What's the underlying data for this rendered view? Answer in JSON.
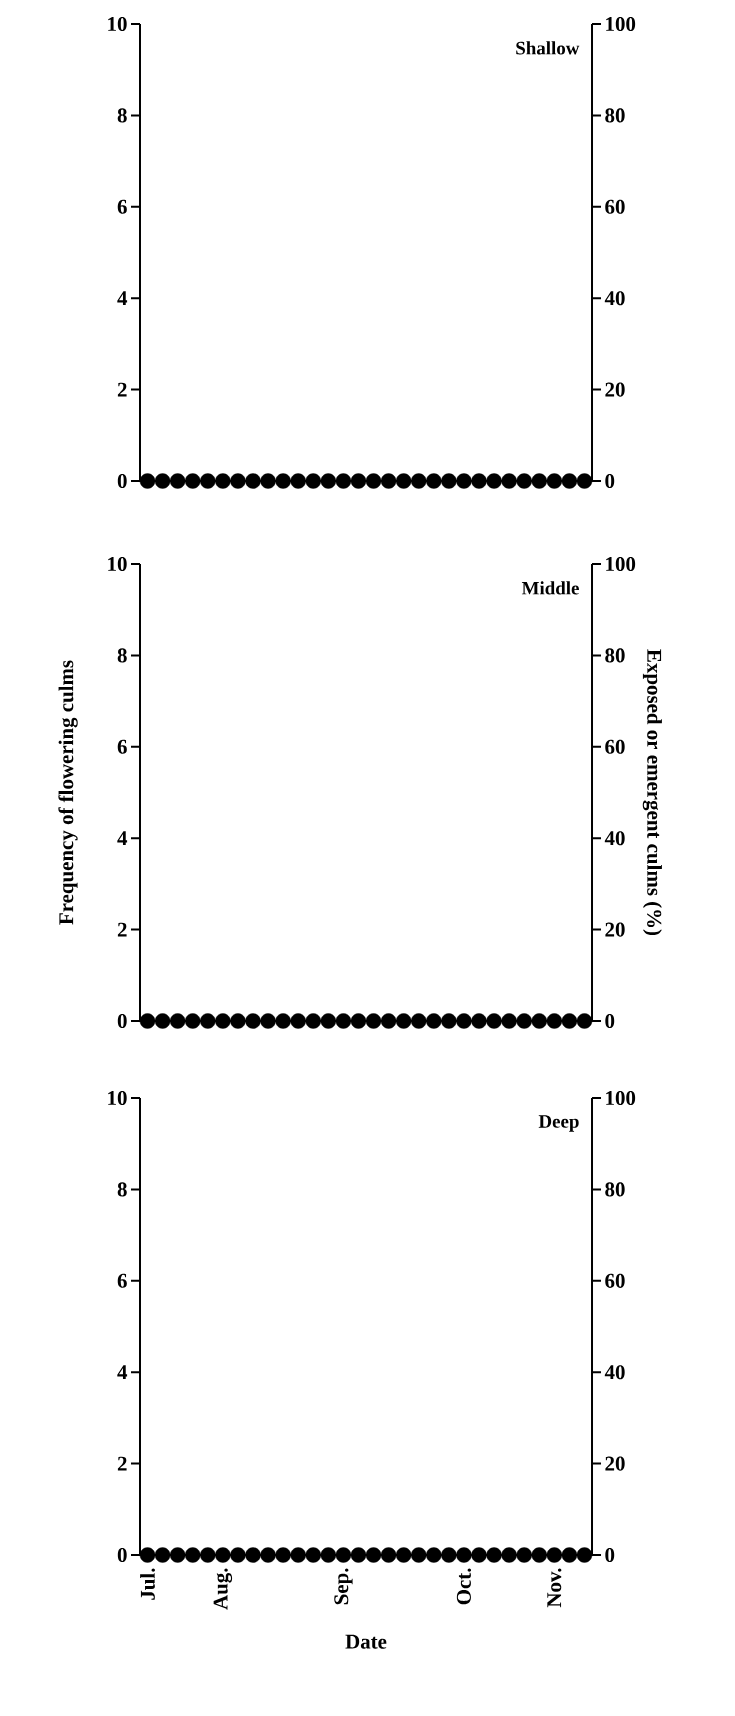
{
  "chart_data": [
    {
      "type": "scatter",
      "title": "Shallow",
      "marker": "circle",
      "tick_labels": "y",
      "categories": [
        null,
        null,
        null,
        null,
        null,
        null,
        null,
        null,
        null,
        null,
        null,
        null,
        null,
        null,
        null,
        null,
        null,
        null,
        null,
        null,
        null,
        null,
        null,
        null,
        null,
        null,
        null,
        null,
        null,
        null
      ],
      "series": [
        {
          "color": "#000000",
          "values": [
            0,
            0,
            0,
            0,
            0,
            0,
            0,
            0,
            0,
            0,
            0,
            0,
            0,
            0,
            0,
            0,
            0,
            0,
            0,
            0,
            0,
            0,
            0,
            0,
            0,
            0,
            0,
            0,
            0,
            0
          ]
        }
      ],
      "ylim": [
        0,
        10
      ],
      "yticks": [
        0,
        2,
        4,
        6,
        8,
        10
      ],
      "y2lim": [
        0,
        100
      ],
      "y2ticks": [
        0,
        20,
        40,
        60,
        80,
        100
      ]
    },
    {
      "type": "scatter",
      "title": "Middle",
      "marker": "circle",
      "tick_labels": "y",
      "ylabel": "Frequency of flowering culms",
      "y2label": "Exposed or emergent culms (%)",
      "categories": [
        null,
        null,
        null,
        null,
        null,
        null,
        null,
        null,
        null,
        null,
        null,
        null,
        null,
        null,
        null,
        null,
        null,
        null,
        null,
        null,
        null,
        null,
        null,
        null,
        null,
        null,
        null,
        null,
        null,
        null
      ],
      "series": [
        {
          "color": "#000000",
          "values": [
            0,
            0,
            0,
            0,
            0,
            0,
            0,
            0,
            0,
            0,
            0,
            0,
            0,
            0,
            0,
            0,
            0,
            0,
            0,
            0,
            0,
            0,
            0,
            0,
            0,
            0,
            0,
            0,
            0,
            0
          ]
        }
      ],
      "ylim": [
        0,
        10
      ],
      "yticks": [
        0,
        2,
        4,
        6,
        8,
        10
      ],
      "y2lim": [
        0,
        100
      ],
      "y2ticks": [
        0,
        20,
        40,
        60,
        80,
        100
      ]
    },
    {
      "type": "scatter",
      "title": "Deep",
      "marker": "circle",
      "xlabel": "Date",
      "categories": [
        "Jul.",
        null,
        null,
        null,
        null,
        "Aug.",
        null,
        null,
        null,
        null,
        null,
        null,
        null,
        "Sep.",
        null,
        null,
        null,
        null,
        null,
        null,
        null,
        "Oct.",
        null,
        null,
        null,
        null,
        null,
        "Nov.",
        null,
        null
      ],
      "series": [
        {
          "color": "#000000",
          "values": [
            0,
            0,
            0,
            0,
            0,
            0,
            0,
            0,
            0,
            0,
            0,
            0,
            0,
            0,
            0,
            0,
            0,
            0,
            0,
            0,
            0,
            0,
            0,
            0,
            0,
            0,
            0,
            0,
            0,
            0
          ]
        }
      ],
      "ylim": [
        0,
        10
      ],
      "yticks": [
        0,
        2,
        4,
        6,
        8,
        10
      ],
      "y2lim": [
        0,
        100
      ],
      "y2ticks": [
        0,
        20,
        40,
        60,
        80,
        100
      ]
    }
  ]
}
